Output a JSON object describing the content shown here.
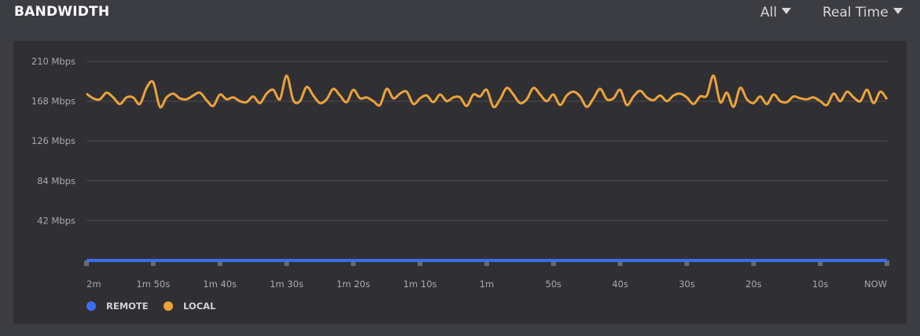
{
  "header": {
    "title": "BANDWIDTH",
    "filter_label": "All",
    "range_label": "Real Time"
  },
  "colors": {
    "remote": "#3b6df0",
    "local": "#eca33a",
    "background": "#3c3d42",
    "panel": "#303034"
  },
  "chart_data": {
    "type": "line",
    "ylim": [
      0,
      210
    ],
    "y_ticks": [
      "42 Mbps",
      "84 Mbps",
      "126 Mbps",
      "168 Mbps",
      "210 Mbps"
    ],
    "y_tick_values": [
      42,
      84,
      126,
      168,
      210
    ],
    "x_ticks": [
      "2m",
      "1m 50s",
      "1m 40s",
      "1m 30s",
      "1m 20s",
      "1m 10s",
      "1m",
      "50s",
      "40s",
      "30s",
      "20s",
      "10s",
      "NOW"
    ],
    "x_tick_values": [
      120,
      110,
      100,
      90,
      80,
      70,
      60,
      50,
      40,
      30,
      20,
      10,
      0
    ],
    "x_unit": "seconds ago",
    "grid": true,
    "legend_placement": "bottom-left",
    "series": [
      {
        "name": "REMOTE",
        "color": "#3b6df0",
        "values": [
          0,
          0,
          0,
          0,
          0,
          0,
          0,
          0,
          0,
          0,
          0,
          0,
          0
        ]
      },
      {
        "name": "LOCAL",
        "color": "#eca33a",
        "values": [
          176,
          171,
          170,
          177,
          172,
          165,
          172,
          172,
          165,
          182,
          188,
          162,
          172,
          176,
          171,
          170,
          174,
          177,
          169,
          163,
          175,
          170,
          172,
          168,
          167,
          173,
          166,
          176,
          180,
          170,
          195,
          169,
          168,
          183,
          174,
          166,
          170,
          181,
          174,
          167,
          180,
          171,
          172,
          168,
          164,
          181,
          171,
          176,
          178,
          165,
          171,
          174,
          167,
          175,
          168,
          172,
          172,
          163,
          175,
          173,
          180,
          162,
          170,
          182,
          175,
          166,
          170,
          182,
          175,
          168,
          175,
          164,
          174,
          178,
          173,
          162,
          171,
          181,
          170,
          171,
          180,
          164,
          173,
          179,
          172,
          169,
          174,
          168,
          174,
          176,
          172,
          165,
          173,
          174,
          195,
          167,
          177,
          162,
          182,
          170,
          166,
          173,
          165,
          175,
          168,
          167,
          173,
          171,
          170,
          172,
          168,
          164,
          176,
          168,
          178,
          172,
          168,
          180,
          166,
          178,
          170
        ]
      }
    ]
  },
  "legend": [
    {
      "label": "REMOTE"
    },
    {
      "label": "LOCAL"
    }
  ]
}
